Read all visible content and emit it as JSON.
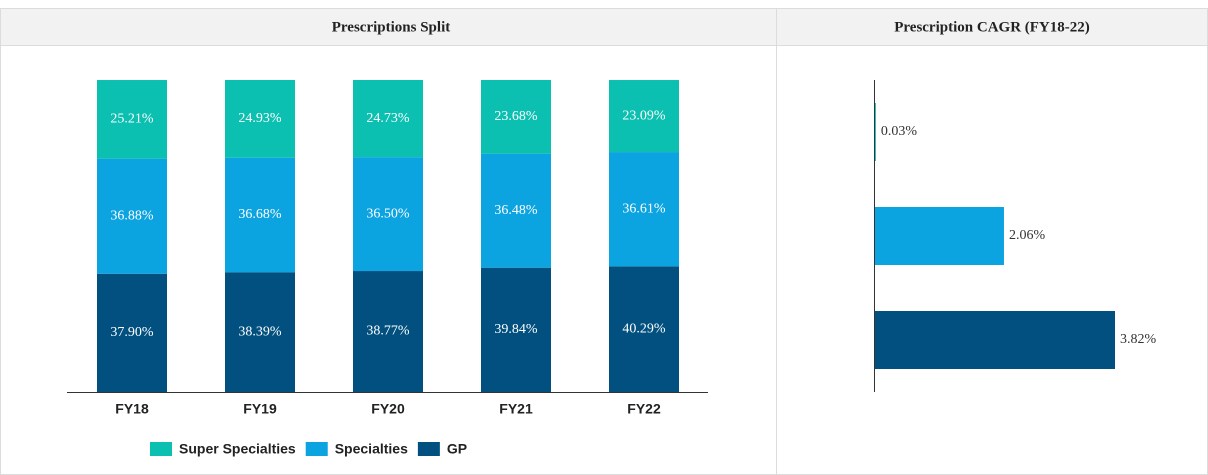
{
  "chart_data": [
    {
      "type": "stacked_bar",
      "title": "Prescriptions Split",
      "categories": [
        "FY18",
        "FY19",
        "FY20",
        "FY21",
        "FY22"
      ],
      "series": [
        {
          "name": "GP",
          "color": "#02507f",
          "values": [
            37.9,
            38.39,
            38.77,
            39.84,
            40.29
          ],
          "value_labels": [
            "37.90%",
            "38.39%",
            "38.77%",
            "39.84%",
            "40.29%"
          ]
        },
        {
          "name": "Specialties",
          "color": "#0ba3e0",
          "values": [
            36.88,
            36.68,
            36.5,
            36.48,
            36.61
          ],
          "value_labels": [
            "36.88%",
            "36.68%",
            "36.50%",
            "36.48%",
            "36.61%"
          ]
        },
        {
          "name": "Super Specialties",
          "color": "#0bbfb1",
          "values": [
            25.21,
            24.93,
            24.73,
            23.68,
            23.09
          ],
          "value_labels": [
            "25.21%",
            "24.93%",
            "24.73%",
            "23.68%",
            "23.09%"
          ]
        }
      ],
      "legend": "bottom"
    },
    {
      "type": "hbar",
      "title": "Prescription CAGR (FY18-22)",
      "categories": [
        null,
        null,
        null
      ],
      "values": [
        0.03,
        2.06,
        3.82
      ],
      "value_labels": [
        "0.03%",
        "2.06%",
        "3.82%"
      ],
      "colors": [
        "#0bbfb1",
        "#0ba3e0",
        "#02507f"
      ]
    }
  ]
}
